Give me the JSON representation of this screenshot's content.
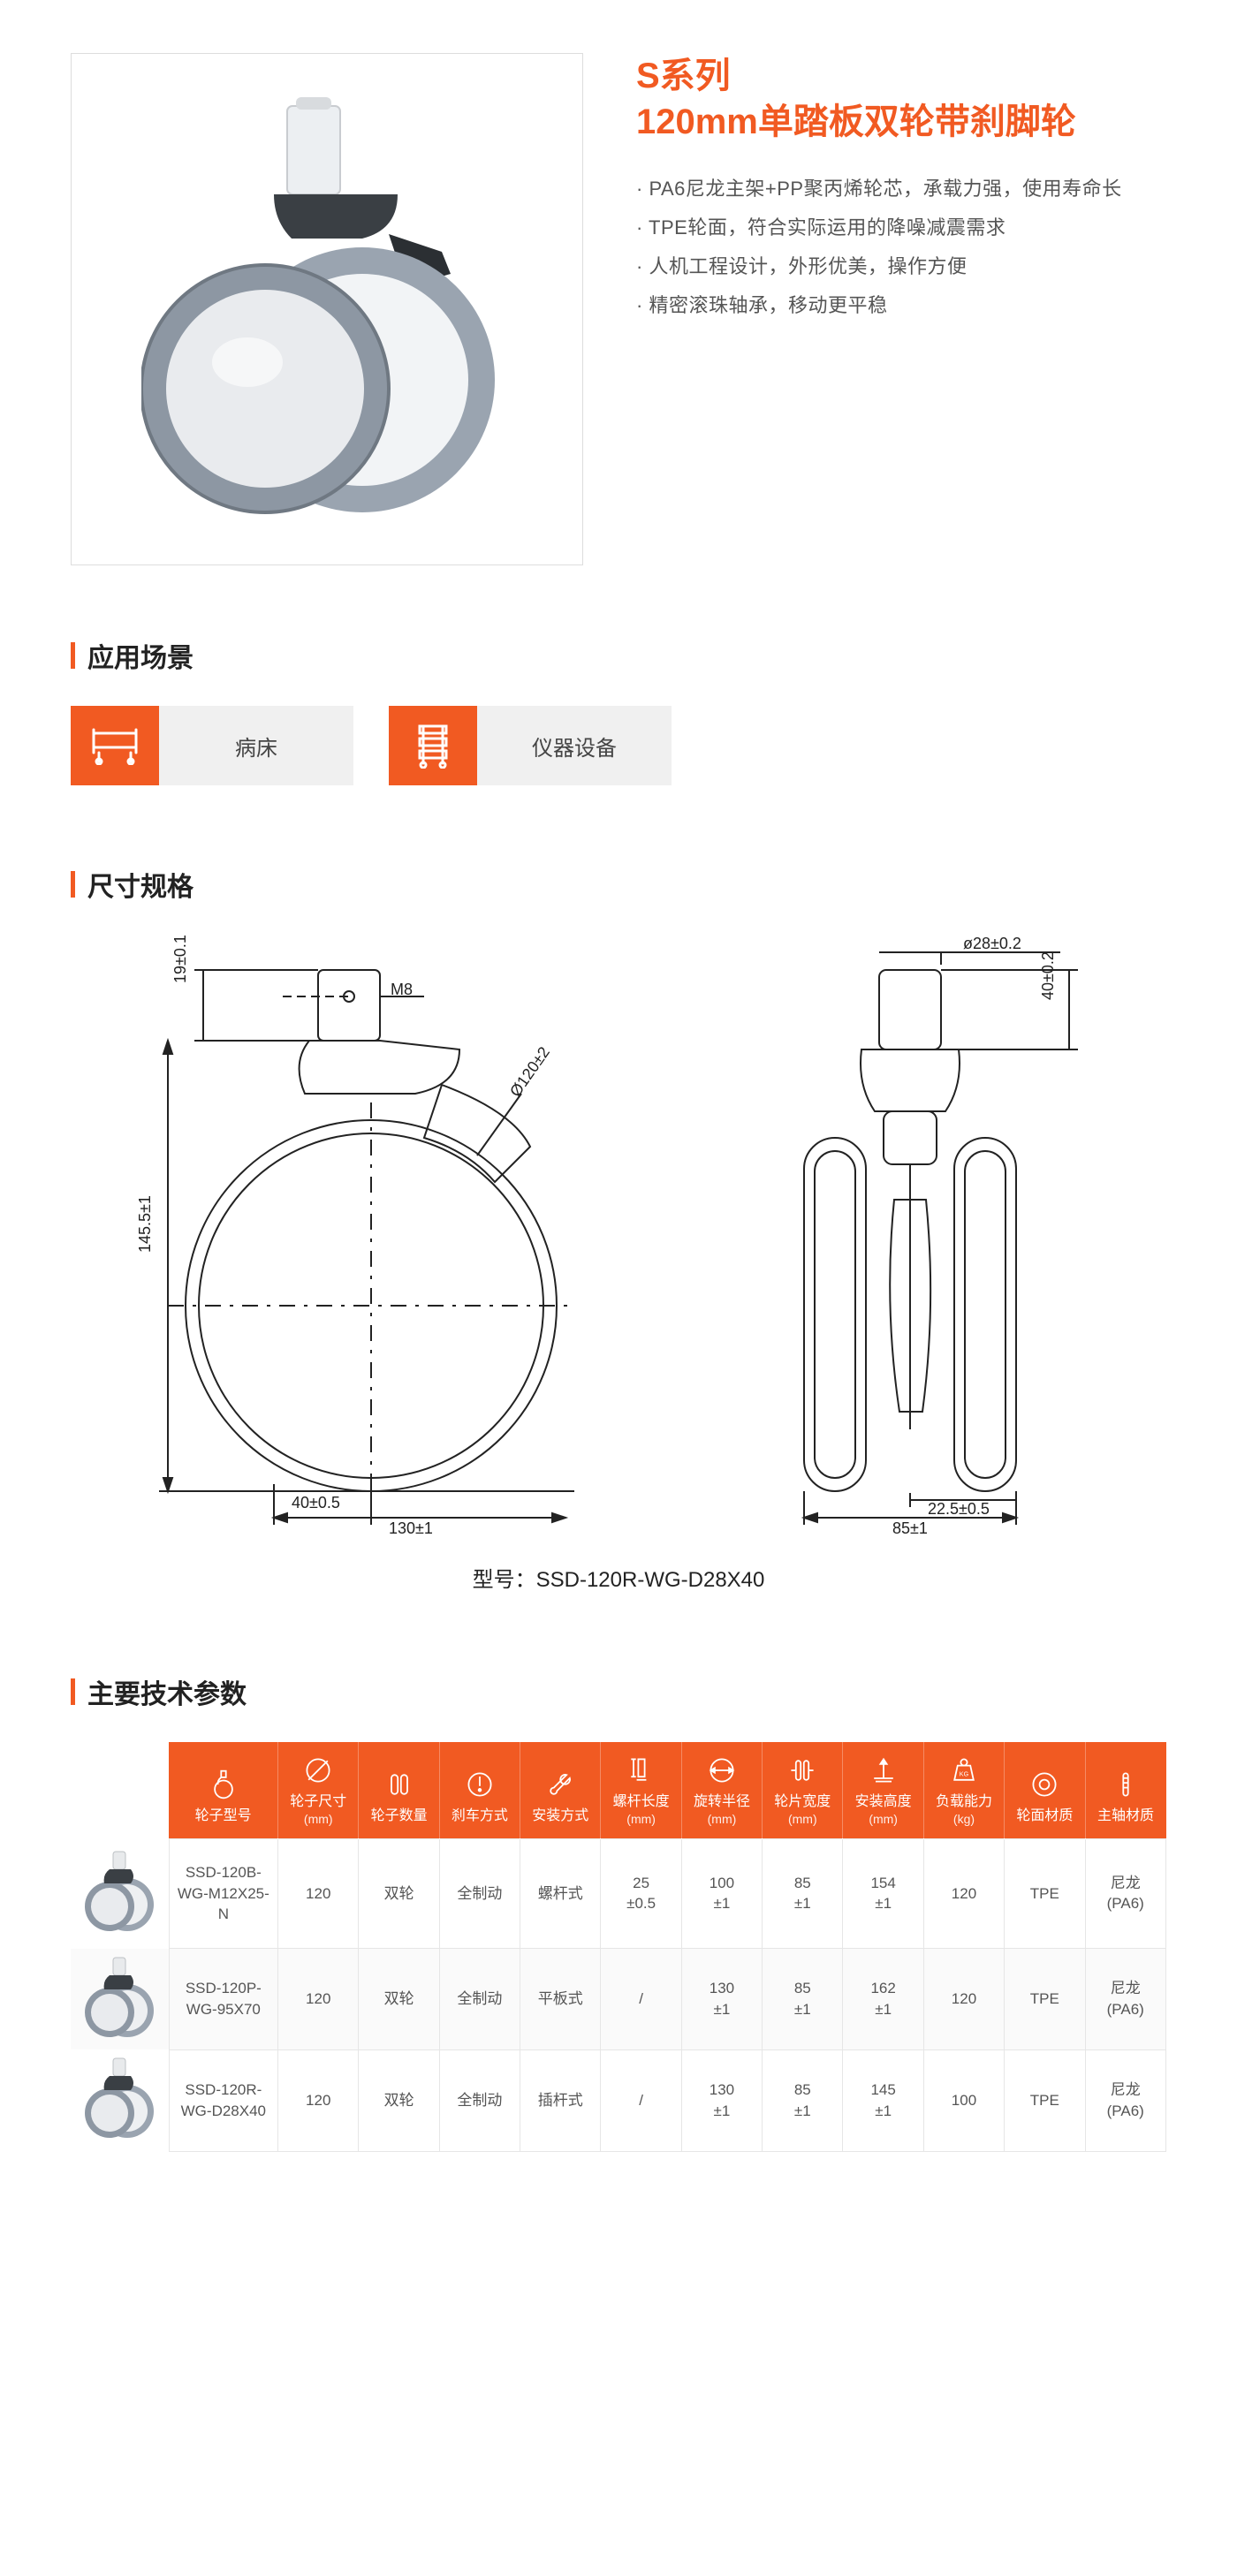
{
  "hero": {
    "series": "S系列",
    "title": "120mm单踏板双轮带刹脚轮",
    "features": [
      "· PA6尼龙主架+PP聚丙烯轮芯，承载力强，使用寿命长",
      "· TPE轮面，符合实际运用的降噪减震需求",
      "· 人机工程设计，外形优美，操作方便",
      "· 精密滚珠轴承，移动更平稳"
    ]
  },
  "colors": {
    "accent": "#F15A22",
    "grey": "#f0f0f0",
    "text": "#333",
    "wheel_tire": "#9aa4b0",
    "wheel_hub": "#f2f4f6",
    "brake": "#2b2f33"
  },
  "sections": {
    "apps": "应用场景",
    "dims": "尺寸规格",
    "tech": "主要技术参数"
  },
  "apps": [
    {
      "icon": "bed",
      "label": "病床"
    },
    {
      "icon": "trolley",
      "label": "仪器设备"
    }
  ],
  "drawing": {
    "model_label": "型号：SSD-120R-WG-D28X40",
    "side": {
      "h_top": "19±0.1",
      "thread": "M8",
      "diameter": "Ø120±2",
      "h_total": "145.5±1",
      "offset": "40±0.5",
      "base_w": "130±1"
    },
    "front": {
      "stem_d": "ø28±0.2",
      "stem_h": "40±0.2",
      "wheel_half": "22.5±0.5",
      "total_w": "85±1"
    }
  },
  "tech": {
    "headers": [
      {
        "label": "轮子型号",
        "unit": ""
      },
      {
        "label": "轮子尺寸",
        "unit": "(mm)"
      },
      {
        "label": "轮子数量",
        "unit": ""
      },
      {
        "label": "刹车方式",
        "unit": ""
      },
      {
        "label": "安装方式",
        "unit": ""
      },
      {
        "label": "螺杆长度",
        "unit": "(mm)"
      },
      {
        "label": "旋转半径",
        "unit": "(mm)"
      },
      {
        "label": "轮片宽度",
        "unit": "(mm)"
      },
      {
        "label": "安装高度",
        "unit": "(mm)"
      },
      {
        "label": "负载能力",
        "unit": "(kg)"
      },
      {
        "label": "轮面材质",
        "unit": ""
      },
      {
        "label": "主轴材质",
        "unit": ""
      }
    ],
    "rows": [
      {
        "model": "SSD-120B-WG-M12X25-N",
        "size": "120",
        "qty": "双轮",
        "brake": "全制动",
        "mount": "螺杆式",
        "screw": "25\n±0.5",
        "radius": "100\n±1",
        "width": "85\n±1",
        "height": "154\n±1",
        "load": "120",
        "surface": "TPE",
        "axle": "尼龙\n(PA6)"
      },
      {
        "model": "SSD-120P-WG-95X70",
        "size": "120",
        "qty": "双轮",
        "brake": "全制动",
        "mount": "平板式",
        "screw": "/",
        "radius": "130\n±1",
        "width": "85\n±1",
        "height": "162\n±1",
        "load": "120",
        "surface": "TPE",
        "axle": "尼龙\n(PA6)"
      },
      {
        "model": "SSD-120R-WG-D28X40",
        "size": "120",
        "qty": "双轮",
        "brake": "全制动",
        "mount": "插杆式",
        "screw": "/",
        "radius": "130\n±1",
        "width": "85\n±1",
        "height": "145\n±1",
        "load": "100",
        "surface": "TPE",
        "axle": "尼龙\n(PA6)"
      }
    ]
  }
}
